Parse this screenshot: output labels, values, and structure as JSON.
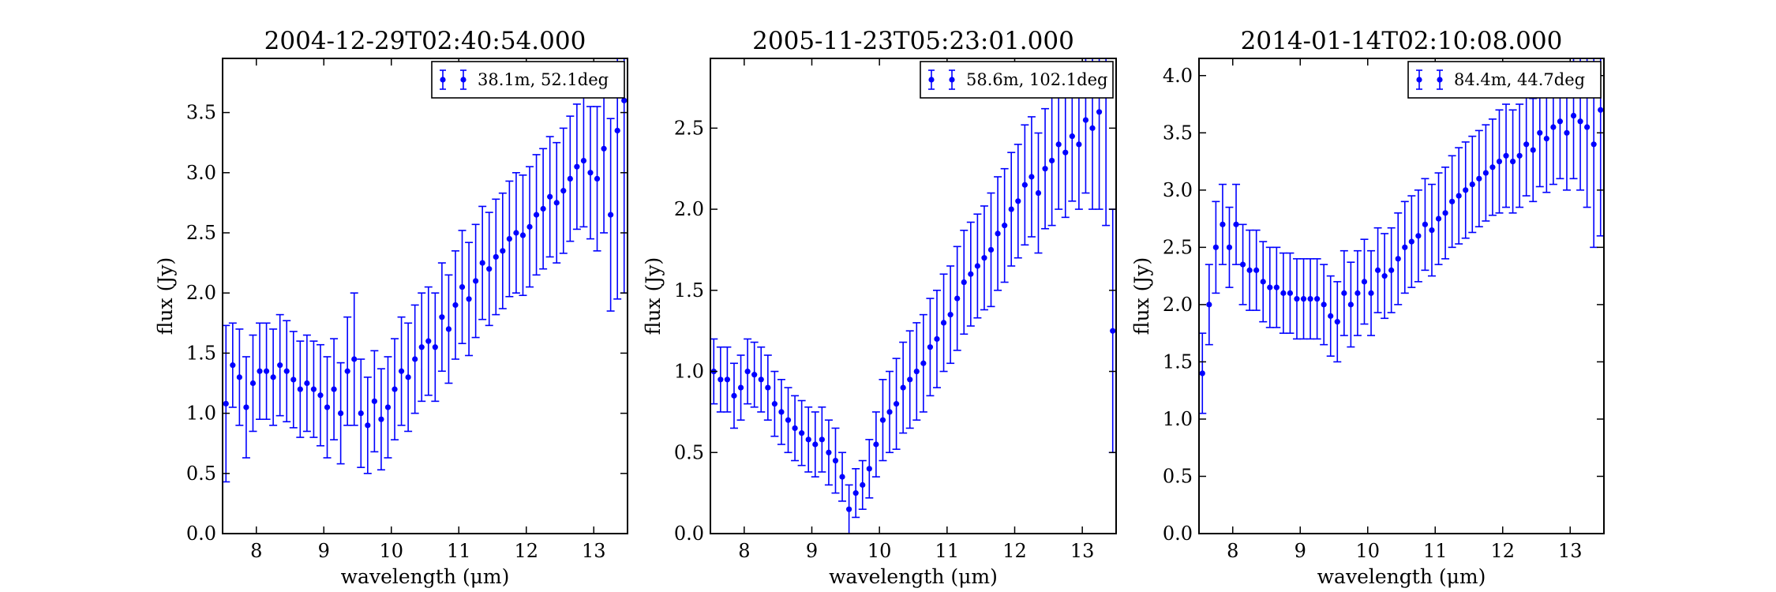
{
  "colors": {
    "series": "#0000ff",
    "axes": "#000000",
    "background": "#ffffff"
  },
  "chart_data": [
    {
      "type": "scatter",
      "title": "2004-12-29T02:40:54.000",
      "xlabel": "wavelength (μm)",
      "ylabel": "flux (Jy)",
      "xlim": [
        7.5,
        13.5
      ],
      "ylim": [
        0.0,
        3.95
      ],
      "xticks": [
        "8",
        "9",
        "10",
        "11",
        "12",
        "13"
      ],
      "yticks": [
        "0.0",
        "0.5",
        "1.0",
        "1.5",
        "2.0",
        "2.5",
        "3.0",
        "3.5"
      ],
      "grid": false,
      "legend_position": "top-right",
      "series": [
        {
          "name": "38.1m, 52.1deg",
          "x": [
            7.55,
            7.65,
            7.75,
            7.85,
            7.95,
            8.05,
            8.15,
            8.25,
            8.35,
            8.45,
            8.55,
            8.65,
            8.75,
            8.85,
            8.95,
            9.05,
            9.15,
            9.25,
            9.35,
            9.45,
            9.55,
            9.65,
            9.75,
            9.85,
            9.95,
            10.05,
            10.15,
            10.25,
            10.35,
            10.45,
            10.55,
            10.65,
            10.75,
            10.85,
            10.95,
            11.05,
            11.15,
            11.25,
            11.35,
            11.45,
            11.55,
            11.65,
            11.75,
            11.85,
            11.95,
            12.05,
            12.15,
            12.25,
            12.35,
            12.45,
            12.55,
            12.65,
            12.75,
            12.85,
            12.95,
            13.05,
            13.15,
            13.25,
            13.35,
            13.45
          ],
          "y": [
            1.08,
            1.4,
            1.3,
            1.05,
            1.25,
            1.35,
            1.35,
            1.3,
            1.4,
            1.35,
            1.28,
            1.2,
            1.25,
            1.2,
            1.15,
            1.05,
            1.2,
            1.0,
            1.35,
            1.45,
            1.0,
            0.9,
            1.1,
            0.95,
            1.05,
            1.2,
            1.35,
            1.3,
            1.45,
            1.55,
            1.6,
            1.55,
            1.8,
            1.7,
            1.9,
            2.05,
            1.95,
            2.1,
            2.25,
            2.2,
            2.3,
            2.35,
            2.45,
            2.5,
            2.48,
            2.55,
            2.65,
            2.7,
            2.8,
            2.75,
            2.85,
            2.95,
            3.05,
            3.1,
            3.0,
            2.95,
            3.2,
            2.65,
            3.35,
            3.6
          ],
          "err": [
            0.65,
            0.35,
            0.4,
            0.42,
            0.4,
            0.4,
            0.4,
            0.4,
            0.42,
            0.42,
            0.4,
            0.4,
            0.4,
            0.4,
            0.42,
            0.42,
            0.42,
            0.42,
            0.45,
            0.55,
            0.45,
            0.4,
            0.42,
            0.42,
            0.42,
            0.42,
            0.45,
            0.45,
            0.45,
            0.45,
            0.45,
            0.45,
            0.45,
            0.45,
            0.45,
            0.47,
            0.47,
            0.47,
            0.47,
            0.47,
            0.48,
            0.48,
            0.48,
            0.5,
            0.5,
            0.5,
            0.5,
            0.5,
            0.5,
            0.5,
            0.52,
            0.52,
            0.52,
            0.55,
            0.55,
            0.6,
            0.7,
            0.8,
            1.4,
            1.6
          ]
        }
      ]
    },
    {
      "type": "scatter",
      "title": "2005-11-23T05:23:01.000",
      "xlabel": "wavelength (μm)",
      "ylabel": "flux (Jy)",
      "xlim": [
        7.5,
        13.5
      ],
      "ylim": [
        0.0,
        2.93
      ],
      "xticks": [
        "8",
        "9",
        "10",
        "11",
        "12",
        "13"
      ],
      "yticks": [
        "0.0",
        "0.5",
        "1.0",
        "1.5",
        "2.0",
        "2.5"
      ],
      "grid": false,
      "legend_position": "top-right",
      "series": [
        {
          "name": "58.6m, 102.1deg",
          "x": [
            7.55,
            7.65,
            7.75,
            7.85,
            7.95,
            8.05,
            8.15,
            8.25,
            8.35,
            8.45,
            8.55,
            8.65,
            8.75,
            8.85,
            8.95,
            9.05,
            9.15,
            9.25,
            9.35,
            9.45,
            9.55,
            9.65,
            9.75,
            9.85,
            9.95,
            10.05,
            10.15,
            10.25,
            10.35,
            10.45,
            10.55,
            10.65,
            10.75,
            10.85,
            10.95,
            11.05,
            11.15,
            11.25,
            11.35,
            11.45,
            11.55,
            11.65,
            11.75,
            11.85,
            11.95,
            12.05,
            12.15,
            12.25,
            12.35,
            12.45,
            12.55,
            12.65,
            12.75,
            12.85,
            12.95,
            13.05,
            13.15,
            13.25,
            13.35,
            13.45
          ],
          "y": [
            1.0,
            0.95,
            0.95,
            0.85,
            0.9,
            1.0,
            0.98,
            0.95,
            0.9,
            0.8,
            0.75,
            0.7,
            0.65,
            0.62,
            0.58,
            0.55,
            0.58,
            0.5,
            0.45,
            0.35,
            0.15,
            0.25,
            0.3,
            0.4,
            0.55,
            0.7,
            0.75,
            0.8,
            0.9,
            0.95,
            1.0,
            1.05,
            1.15,
            1.2,
            1.3,
            1.35,
            1.45,
            1.55,
            1.6,
            1.65,
            1.7,
            1.75,
            1.85,
            1.9,
            2.0,
            2.05,
            2.15,
            2.2,
            2.1,
            2.25,
            2.3,
            2.4,
            2.35,
            2.45,
            2.4,
            2.55,
            2.5,
            2.6,
            2.7,
            1.25
          ],
          "err": [
            0.2,
            0.2,
            0.2,
            0.2,
            0.2,
            0.2,
            0.2,
            0.2,
            0.2,
            0.2,
            0.2,
            0.2,
            0.2,
            0.2,
            0.2,
            0.2,
            0.2,
            0.2,
            0.2,
            0.15,
            0.15,
            0.15,
            0.15,
            0.18,
            0.2,
            0.25,
            0.25,
            0.28,
            0.28,
            0.3,
            0.3,
            0.3,
            0.3,
            0.3,
            0.3,
            0.3,
            0.32,
            0.32,
            0.32,
            0.32,
            0.32,
            0.35,
            0.35,
            0.35,
            0.35,
            0.35,
            0.37,
            0.37,
            0.37,
            0.37,
            0.4,
            0.4,
            0.4,
            0.4,
            0.4,
            0.45,
            0.5,
            0.6,
            0.8,
            0.75
          ]
        }
      ]
    },
    {
      "type": "scatter",
      "title": "2014-01-14T02:10:08.000",
      "xlabel": "wavelength (μm)",
      "ylabel": "flux (Jy)",
      "xlim": [
        7.5,
        13.5
      ],
      "ylim": [
        0.0,
        4.15
      ],
      "xticks": [
        "8",
        "9",
        "10",
        "11",
        "12",
        "13"
      ],
      "yticks": [
        "0.0",
        "0.5",
        "1.0",
        "1.5",
        "2.0",
        "2.5",
        "3.0",
        "3.5",
        "4.0"
      ],
      "grid": false,
      "legend_position": "top-right",
      "series": [
        {
          "name": "84.4m, 44.7deg",
          "x": [
            7.55,
            7.65,
            7.75,
            7.85,
            7.95,
            8.05,
            8.15,
            8.25,
            8.35,
            8.45,
            8.55,
            8.65,
            8.75,
            8.85,
            8.95,
            9.05,
            9.15,
            9.25,
            9.35,
            9.45,
            9.55,
            9.65,
            9.75,
            9.85,
            9.95,
            10.05,
            10.15,
            10.25,
            10.35,
            10.45,
            10.55,
            10.65,
            10.75,
            10.85,
            10.95,
            11.05,
            11.15,
            11.25,
            11.35,
            11.45,
            11.55,
            11.65,
            11.75,
            11.85,
            11.95,
            12.05,
            12.15,
            12.25,
            12.35,
            12.45,
            12.55,
            12.65,
            12.75,
            12.85,
            12.95,
            13.05,
            13.15,
            13.25,
            13.35,
            13.45
          ],
          "y": [
            1.4,
            2.0,
            2.5,
            2.7,
            2.5,
            2.7,
            2.35,
            2.3,
            2.3,
            2.2,
            2.15,
            2.15,
            2.1,
            2.1,
            2.05,
            2.05,
            2.05,
            2.05,
            2.0,
            1.9,
            1.85,
            2.1,
            2.0,
            2.1,
            2.2,
            2.1,
            2.3,
            2.25,
            2.3,
            2.4,
            2.5,
            2.55,
            2.6,
            2.7,
            2.65,
            2.75,
            2.8,
            2.9,
            2.95,
            3.0,
            3.05,
            3.1,
            3.15,
            3.2,
            3.25,
            3.3,
            3.25,
            3.3,
            3.4,
            3.35,
            3.5,
            3.45,
            3.55,
            3.6,
            3.5,
            3.65,
            3.6,
            3.55,
            3.4,
            3.7
          ],
          "err": [
            0.35,
            0.35,
            0.4,
            0.35,
            0.35,
            0.35,
            0.35,
            0.35,
            0.35,
            0.35,
            0.35,
            0.35,
            0.35,
            0.35,
            0.35,
            0.35,
            0.35,
            0.35,
            0.35,
            0.35,
            0.35,
            0.37,
            0.37,
            0.37,
            0.37,
            0.37,
            0.37,
            0.37,
            0.37,
            0.4,
            0.4,
            0.4,
            0.4,
            0.4,
            0.4,
            0.4,
            0.4,
            0.4,
            0.42,
            0.42,
            0.42,
            0.42,
            0.42,
            0.42,
            0.45,
            0.45,
            0.45,
            0.45,
            0.45,
            0.45,
            0.47,
            0.47,
            0.5,
            0.5,
            0.5,
            0.55,
            0.6,
            0.7,
            0.9,
            1.1
          ]
        }
      ]
    }
  ]
}
